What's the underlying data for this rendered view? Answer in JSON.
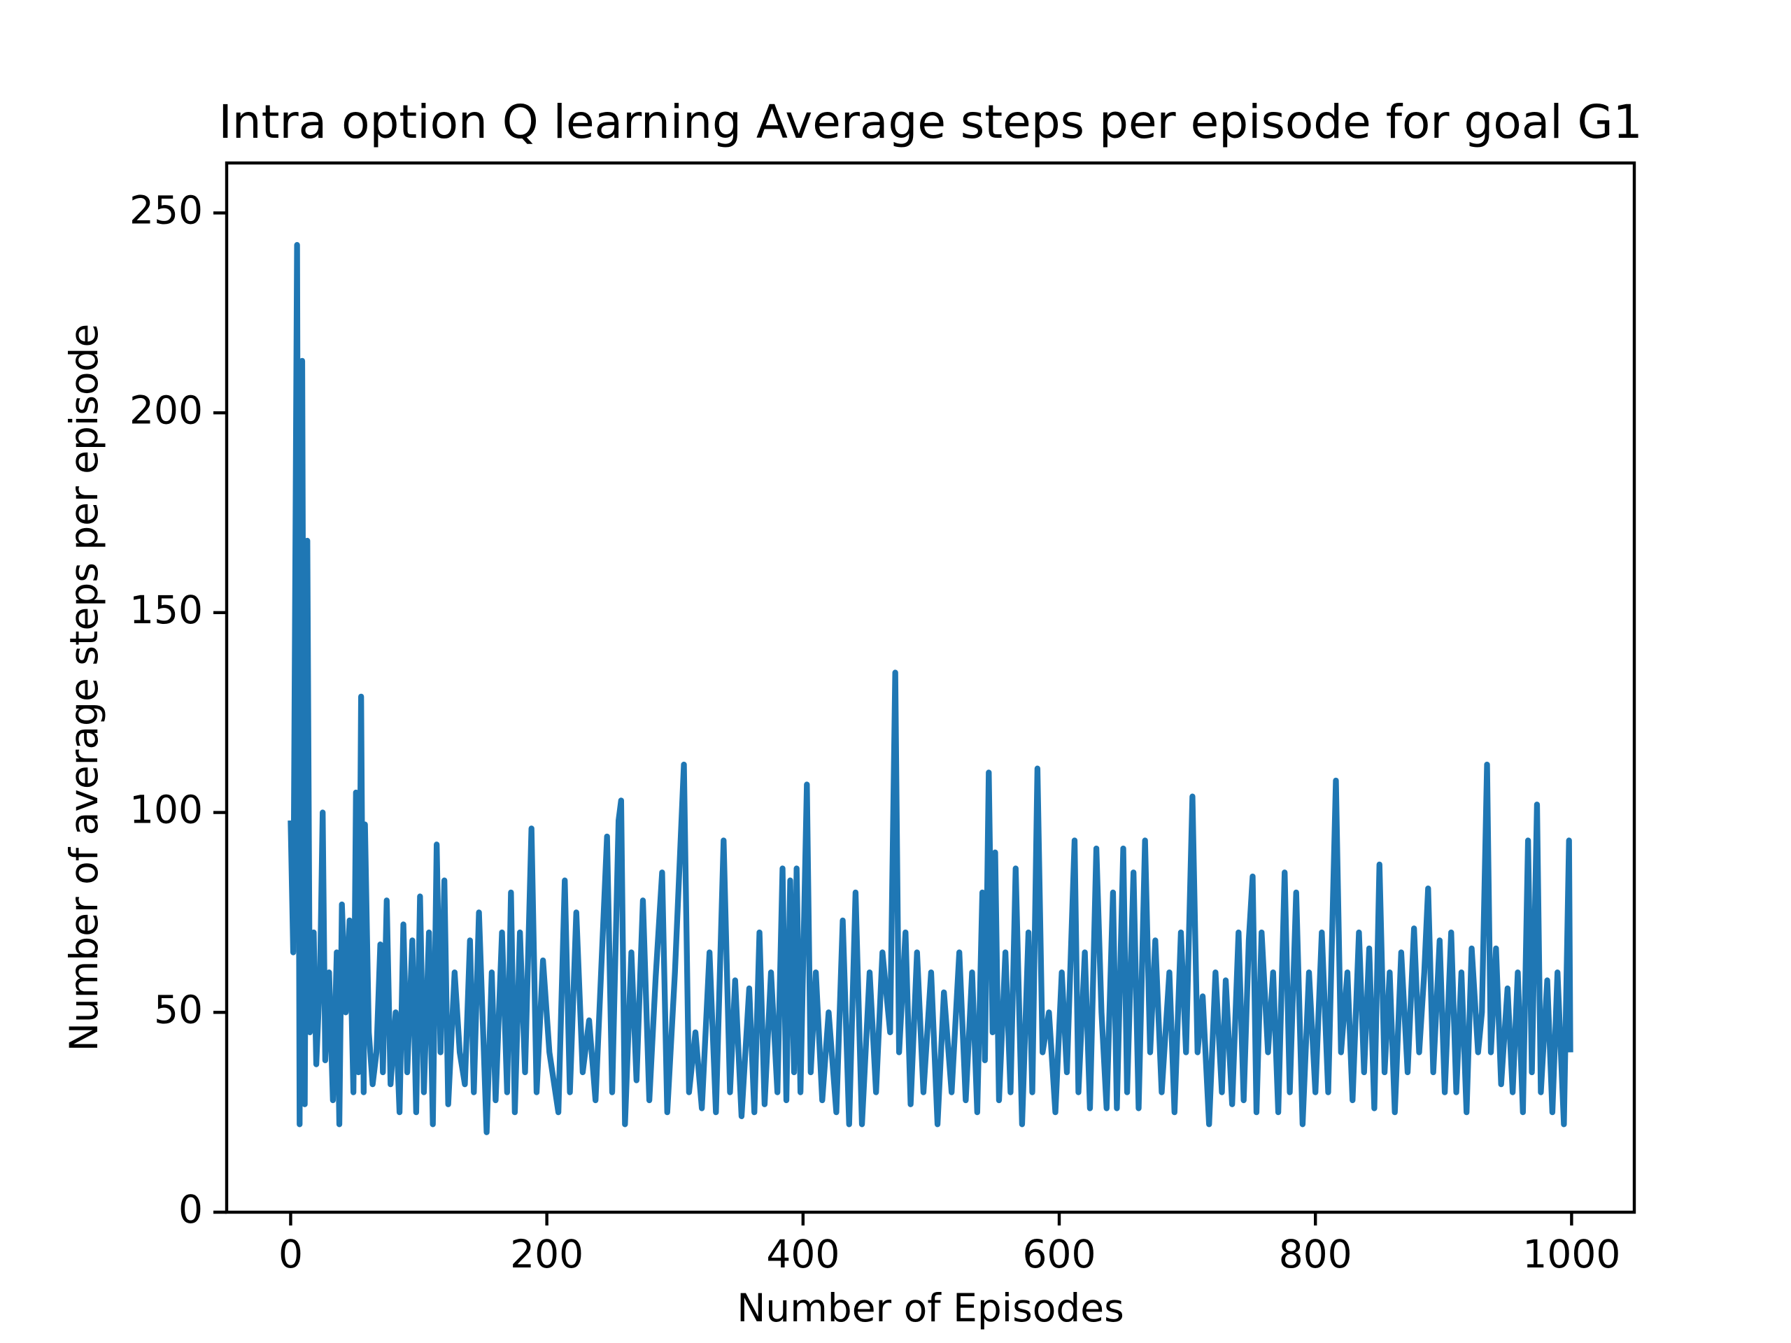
{
  "chart_data": {
    "type": "line",
    "title": "Intra option Q learning Average steps per episode for goal G1",
    "x_label": "Number of Episodes",
    "y_label": "Number of average steps per episode",
    "xlim": [
      -49.95,
      1048.95
    ],
    "xticks": [
      0,
      200,
      400,
      600,
      800,
      1000
    ],
    "ylim": [
      0,
      262.5
    ],
    "yticks": [
      0,
      50,
      100,
      150,
      200,
      250
    ],
    "grid": false,
    "series": [
      {
        "color": "#1f77b4",
        "x": [
          0,
          2,
          5,
          7,
          9,
          11,
          13,
          15,
          18,
          20,
          23,
          25,
          27,
          30,
          33,
          36,
          38,
          40,
          43,
          46,
          49,
          51,
          53,
          55,
          57,
          58,
          61,
          64,
          67,
          70,
          72,
          75,
          78,
          82,
          85,
          88,
          91,
          95,
          98,
          101,
          104,
          108,
          111,
          114,
          117,
          120,
          123,
          128,
          132,
          136,
          140,
          143,
          147,
          153,
          157,
          160,
          165,
          169,
          172,
          175,
          179,
          183,
          188,
          192,
          197,
          202,
          209,
          214,
          218,
          223,
          228,
          233,
          238,
          247,
          251,
          256,
          258,
          261,
          266,
          270,
          275,
          280,
          285,
          290,
          294,
          300,
          307,
          311,
          316,
          321,
          327,
          332,
          338,
          343,
          347,
          352,
          358,
          362,
          366,
          370,
          375,
          380,
          384,
          387,
          390,
          393,
          395,
          398,
          403,
          406,
          410,
          415,
          420,
          426,
          431,
          436,
          441,
          446,
          452,
          457,
          462,
          468,
          472,
          475,
          480,
          484,
          489,
          494,
          500,
          505,
          510,
          516,
          522,
          527,
          532,
          536,
          540,
          542,
          545,
          548,
          550,
          553,
          558,
          562,
          566,
          571,
          576,
          579,
          583,
          587,
          592,
          597,
          602,
          606,
          612,
          615,
          620,
          624,
          629,
          633,
          637,
          642,
          645,
          650,
          653,
          658,
          662,
          667,
          671,
          675,
          680,
          686,
          690,
          695,
          699,
          704,
          708,
          712,
          717,
          722,
          727,
          730,
          735,
          740,
          744,
          748,
          751,
          754,
          758,
          763,
          767,
          771,
          776,
          780,
          785,
          790,
          795,
          800,
          805,
          810,
          816,
          820,
          825,
          829,
          834,
          838,
          842,
          846,
          850,
          854,
          858,
          862,
          867,
          872,
          877,
          881,
          885,
          888,
          892,
          897,
          901,
          906,
          910,
          914,
          918,
          922,
          927,
          930,
          934,
          937,
          941,
          945,
          950,
          954,
          958,
          962,
          966,
          969,
          973,
          976,
          981,
          985,
          989,
          994,
          998,
          999
        ],
        "values": [
          98,
          65,
          242,
          22,
          213,
          27,
          168,
          45,
          70,
          37,
          60,
          100,
          38,
          60,
          28,
          65,
          22,
          77,
          50,
          73,
          30,
          105,
          35,
          129,
          30,
          97,
          45,
          32,
          40,
          67,
          35,
          78,
          32,
          50,
          25,
          72,
          35,
          68,
          25,
          79,
          30,
          70,
          22,
          92,
          40,
          83,
          27,
          60,
          40,
          32,
          68,
          30,
          75,
          20,
          60,
          28,
          70,
          30,
          80,
          25,
          70,
          35,
          96,
          30,
          63,
          40,
          25,
          83,
          30,
          75,
          35,
          48,
          28,
          94,
          30,
          98,
          103,
          22,
          65,
          33,
          78,
          28,
          59,
          85,
          25,
          60,
          112,
          30,
          45,
          26,
          65,
          25,
          93,
          30,
          58,
          24,
          56,
          25,
          70,
          27,
          60,
          30,
          86,
          28,
          83,
          35,
          86,
          30,
          107,
          35,
          60,
          28,
          50,
          25,
          73,
          22,
          80,
          22,
          60,
          30,
          65,
          45,
          135,
          40,
          70,
          27,
          65,
          30,
          60,
          22,
          55,
          30,
          65,
          28,
          60,
          25,
          80,
          38,
          110,
          45,
          90,
          28,
          65,
          30,
          86,
          22,
          70,
          30,
          111,
          40,
          50,
          25,
          60,
          35,
          93,
          30,
          65,
          26,
          91,
          50,
          26,
          80,
          26,
          91,
          30,
          85,
          26,
          93,
          40,
          68,
          30,
          60,
          25,
          70,
          40,
          104,
          40,
          54,
          22,
          60,
          30,
          58,
          27,
          70,
          28,
          68,
          84,
          25,
          70,
          40,
          60,
          25,
          85,
          30,
          80,
          22,
          60,
          30,
          70,
          30,
          108,
          40,
          60,
          28,
          70,
          35,
          66,
          26,
          87,
          35,
          60,
          25,
          65,
          35,
          71,
          40,
          60,
          81,
          35,
          68,
          30,
          70,
          30,
          60,
          25,
          66,
          40,
          50,
          112,
          40,
          66,
          32,
          56,
          30,
          60,
          25,
          93,
          35,
          102,
          30,
          58,
          25,
          60,
          22,
          93,
          40
        ]
      }
    ]
  }
}
